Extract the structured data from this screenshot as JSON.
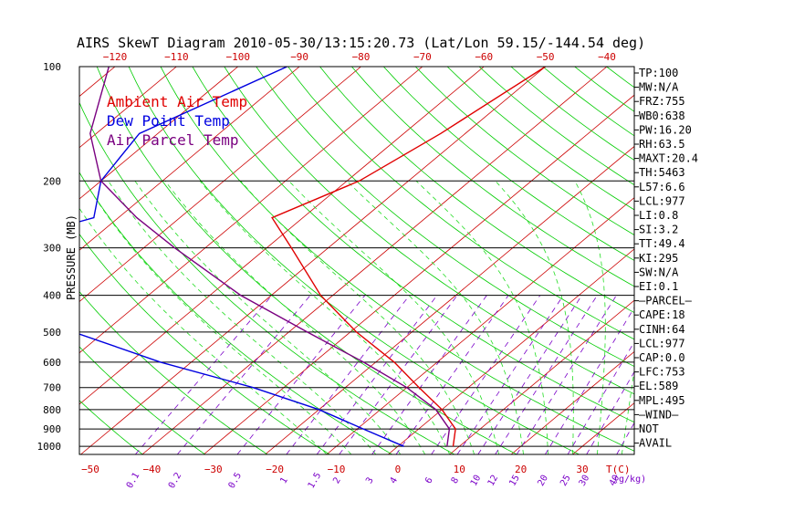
{
  "title": "AIRS SkewT Diagram 2010-05-30/13:15:20.73 (Lat/Lon 59.15/-144.54 deg)",
  "colors": {
    "ambient": "#e00000",
    "dewpoint": "#0000e0",
    "parcel": "#7a0080",
    "isotherm": "#cc0000",
    "dry_adiabat": "#00cc00",
    "mixing_ratio": "#7a00c8",
    "isobar": "#000000"
  },
  "chart_data": {
    "type": "line",
    "title": "AIRS SkewT Diagram 2010-05-30/13:15:20.73 (Lat/Lon 59.15/-144.54 deg)",
    "ylabel": "PRESSURE (MB)",
    "pressure_ticks": [
      100,
      200,
      300,
      400,
      500,
      600,
      700,
      800,
      900,
      1000
    ],
    "top_temperature_ticks": [
      -120,
      -110,
      -100,
      -90,
      -80,
      -70,
      -60,
      -50,
      -40
    ],
    "bottom_temperature_ticks": [
      -50,
      -40,
      -30,
      -20,
      -10,
      0,
      10,
      20,
      30
    ],
    "bottom_unit_label": "T(C)",
    "mixing_ratio_ticks": [
      "0.1",
      "0.2",
      "0.5",
      "1",
      "1.5",
      "2",
      "3",
      "4",
      "6",
      "8",
      "10",
      "12",
      "15",
      "20",
      "25",
      "30",
      "40"
    ],
    "mixing_ratio_unit_label": "(g/kg)",
    "ylim": [
      1050,
      100
    ],
    "legend": [
      "Ambient Air Temp",
      "Dew Point Temp",
      "Air Parcel Temp"
    ],
    "series": [
      {
        "name": "Ambient Air Temp",
        "p": [
          100,
          150,
          200,
          250,
          300,
          400,
          500,
          600,
          700,
          800,
          900,
          1000
        ],
        "t": [
          -50,
          -54,
          -58,
          -65,
          -56,
          -42,
          -29,
          -17,
          -8,
          0,
          6,
          9
        ]
      },
      {
        "name": "Dew Point Temp",
        "p": [
          100,
          150,
          200,
          250,
          300,
          400,
          500,
          600,
          700,
          800,
          900,
          1000
        ],
        "t": [
          -92,
          -103,
          -100,
          -94,
          -106,
          -99,
          -75,
          -55,
          -35,
          -20,
          -9,
          1
        ]
      },
      {
        "name": "Air Parcel Temp",
        "p": [
          100,
          150,
          200,
          250,
          300,
          400,
          500,
          600,
          700,
          800,
          900,
          1000
        ],
        "t": [
          -121,
          -111,
          -100,
          -87,
          -75,
          -55,
          -37,
          -22,
          -10,
          -1,
          5,
          8
        ]
      }
    ]
  },
  "stats": [
    "TP:100",
    "MW:N/A",
    "FRZ:755",
    "WB0:638",
    "PW:16.20",
    "RH:63.5",
    "MAXT:20.4",
    "TH:5463",
    "L57:6.6",
    "LCL:977",
    "LI:0.8",
    "SI:3.2",
    "TT:49.4",
    "KI:295",
    "SW:N/A",
    "EI:0.1",
    "—PARCEL—",
    "CAPE:18",
    "CINH:64",
    "LCL:977",
    "CAP:0.0",
    "LFC:753",
    "EL:589",
    "MPL:495",
    "—WIND—",
    "NOT",
    "AVAIL"
  ]
}
